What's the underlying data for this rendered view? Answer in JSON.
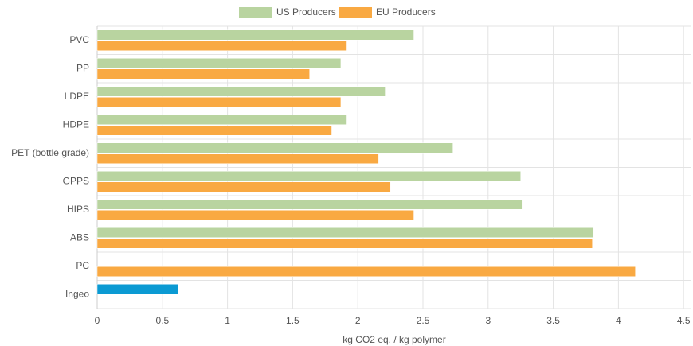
{
  "chart_data": {
    "type": "hbar",
    "categories": [
      "PVC",
      "PP",
      "LDPE",
      "HDPE",
      "PET (bottle grade)",
      "GPPS",
      "HIPS",
      "ABS",
      "PC",
      "Ingeo"
    ],
    "series": [
      {
        "name": "US Producers",
        "color": "#b9d4a0",
        "values": [
          2.43,
          1.87,
          2.21,
          1.91,
          2.73,
          3.25,
          3.26,
          3.81,
          null,
          0.62
        ]
      },
      {
        "name": "EU Producers",
        "color": "#f9a942",
        "values": [
          1.91,
          1.63,
          1.87,
          1.8,
          2.16,
          2.25,
          2.43,
          3.8,
          4.13,
          null
        ]
      }
    ],
    "highlight_index": 9,
    "highlight_color": "#0b9ad3",
    "x_label": "kg CO2 eq. / kg polymer",
    "xlim": [
      0,
      4.56
    ],
    "xticks": [
      0,
      0.5,
      1,
      1.5,
      2,
      2.5,
      3,
      3.5,
      4,
      4.5
    ],
    "grid": true,
    "legend": "top"
  }
}
